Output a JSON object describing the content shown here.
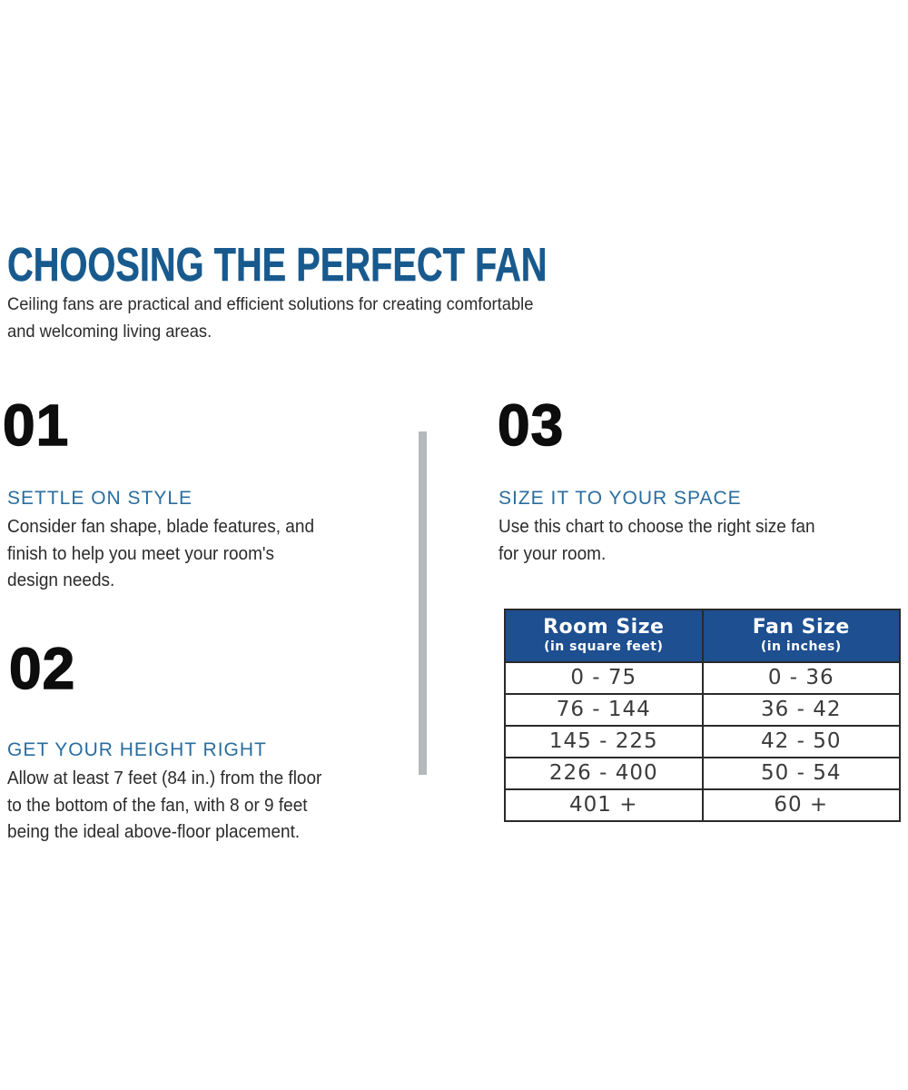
{
  "page": {
    "title": "CHOOSING THE PERFECT FAN",
    "subtitle_lines": [
      "Ceiling fans are practical and efficient solutions for creating comfortable",
      "and welcoming living areas."
    ]
  },
  "steps": [
    {
      "number": "01",
      "heading": "SETTLE ON STYLE",
      "body_lines": [
        "Consider fan shape, blade features, and",
        "finish to help you meet your room's",
        "design needs."
      ]
    },
    {
      "number": "02",
      "heading": "GET YOUR HEIGHT RIGHT",
      "body_lines": [
        "Allow at least 7 feet (84 in.) from the floor",
        "to the bottom of the fan, with 8 or 9 feet",
        "being the ideal above-floor placement."
      ]
    },
    {
      "number": "03",
      "heading": "SIZE IT TO YOUR SPACE",
      "body_lines": [
        "Use this chart to choose the right size fan",
        "for your room."
      ]
    }
  ],
  "table": {
    "columns": [
      {
        "title": "Room Size",
        "unit": "(in square feet)"
      },
      {
        "title": "Fan Size",
        "unit": "(in inches)"
      }
    ],
    "rows": [
      [
        "0 - 75",
        "0 - 36"
      ],
      [
        "76 - 144",
        "36 - 42"
      ],
      [
        "145 - 225",
        "42 - 50"
      ],
      [
        "226 - 400",
        "50 - 54"
      ],
      [
        "401 +",
        "60 +"
      ]
    ]
  },
  "colors": {
    "title_blue": "#185a8e",
    "heading_blue": "#2a6d9e",
    "table_header_blue": "#1d4f91",
    "divider_gray": "#b4b9bb",
    "body_text": "#2b2b2b",
    "number_black": "#0d0d0d"
  }
}
